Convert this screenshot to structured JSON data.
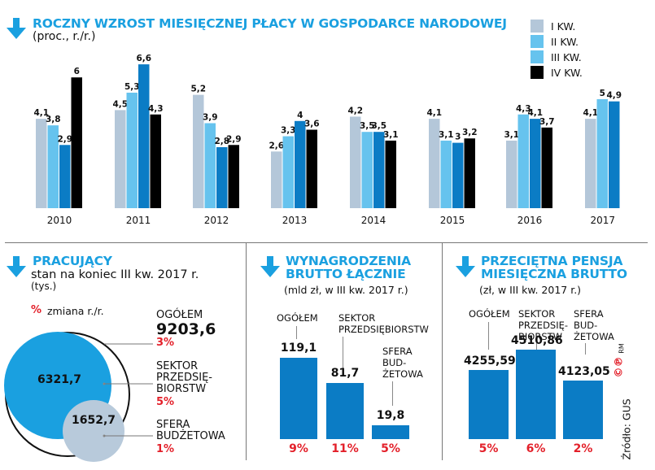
{
  "colors": {
    "accent": "#1aa0e0",
    "q1": "#b4c7d9",
    "q2": "#66c3ee",
    "q3": "#0b7cc5",
    "q4": "#000000",
    "red": "#e3202a",
    "bar_blue": "#0b7cc5",
    "circle_light": "#b8cadb"
  },
  "top": {
    "title": "ROCZNY WZROST MIESIĘCZNEJ PŁACY W GOSPODARCE NARODOWEJ",
    "subtitle": "(proc., r./r.)"
  },
  "legend": [
    {
      "label": "I KW.",
      "color": "#b4c7d9"
    },
    {
      "label": "II KW.",
      "color": "#66c3ee"
    },
    {
      "label": "III KW.",
      "color": "#66c3ee"
    },
    {
      "label": "IV KW.",
      "color": "#000000"
    }
  ],
  "chart_data": [
    {
      "type": "bar",
      "title": "ROCZNY WZROST MIESIĘCZNEJ PŁACY W GOSPODARCE NARODOWEJ",
      "subtitle": "(proc., r./r.)",
      "xlabel": "",
      "ylabel": "",
      "ylim": [
        0,
        7
      ],
      "grid": false,
      "legend_position": "top-right",
      "categories": [
        "2010",
        "2011",
        "2012",
        "2013",
        "2014",
        "2015",
        "2016",
        "2017"
      ],
      "series": [
        {
          "name": "I KW.",
          "values": [
            4.1,
            4.5,
            5.2,
            2.6,
            4.2,
            4.1,
            3.1,
            4.1
          ],
          "labels": [
            "4,1",
            "4,5",
            "5,2",
            "2,6",
            "4,2",
            "4,1",
            "3,1",
            "4,1"
          ]
        },
        {
          "name": "II KW.",
          "values": [
            3.8,
            5.3,
            3.9,
            3.3,
            3.5,
            3.1,
            4.3,
            5.0
          ],
          "labels": [
            "3,8",
            "5,3",
            "3,9",
            "3,3",
            "3,5",
            "3,1",
            "4,3",
            "5"
          ]
        },
        {
          "name": "III KW.",
          "values": [
            2.9,
            6.6,
            2.8,
            4.0,
            3.5,
            3.0,
            4.1,
            4.9
          ],
          "labels": [
            "2,9",
            "6,6",
            "2,8",
            "4",
            "3,5",
            "3",
            "4,1",
            "4,9"
          ]
        },
        {
          "name": "IV KW.",
          "values": [
            6.0,
            4.3,
            2.9,
            3.6,
            3.1,
            3.2,
            3.7,
            null
          ],
          "labels": [
            "6",
            "4,3",
            "2,9",
            "3,6",
            "3,1",
            "3,2",
            "3,7",
            ""
          ]
        }
      ]
    },
    {
      "type": "bar",
      "title": "WYNAGRODZENIA BRUTTO ŁĄCZNIE",
      "subtitle": "(mld zł, w III kw. 2017 r.)",
      "categories": [
        "OGÓŁEM",
        "SEKTOR PRZEDSIĘBIORSTW",
        "SFERA BUDŻETOWA"
      ],
      "values": [
        119.1,
        81.7,
        19.8
      ],
      "value_labels": [
        "119,1",
        "81,7",
        "19,8"
      ],
      "change_yoy": [
        "9%",
        "11%",
        "5%"
      ],
      "ylim": [
        0,
        130
      ]
    },
    {
      "type": "bar",
      "title": "PRZECIĘTNA PENSJA MIESIĘCZNA BRUTTO",
      "subtitle": "(zł, w III kw. 2017 r.)",
      "categories": [
        "OGÓŁEM",
        "SEKTOR PRZEDSIĘBIORSTW",
        "SFERA BUDŻETOWA"
      ],
      "values": [
        4255.59,
        4510.86,
        4123.05
      ],
      "value_labels": [
        "4255,59",
        "4510,86",
        "4123,05"
      ],
      "change_yoy": [
        "5%",
        "6%",
        "2%"
      ]
    }
  ],
  "employed": {
    "title": "PRACUJĄCY",
    "subtitle": "stan na koniec III kw. 2017 r.",
    "unit": "(tys.)",
    "legend_pct": "%",
    "legend_text": "zmiana r./r.",
    "total": {
      "label": "OGÓŁEM",
      "value": "9203,6",
      "change": "3%"
    },
    "enterprise": {
      "label_lines": [
        "SEKTOR",
        "PRZEDSIĘ-",
        "BIORSTW"
      ],
      "value": "6321,7",
      "change": "5%"
    },
    "budget": {
      "label_lines": [
        "SFERA",
        "BUDŻETOWA"
      ],
      "value": "1652,7",
      "change": "1%"
    }
  },
  "wages_total": {
    "title_lines": [
      "WYNAGRODZENIA",
      "BRUTTO ŁĄCZNIE"
    ],
    "subtitle": "(mld zł, w III kw. 2017 r.)",
    "labels": {
      "total": [
        "OGÓŁEM"
      ],
      "enterprise": [
        "SEKTOR",
        "PRZEDSIĘBIORSTW"
      ],
      "budget": [
        "SFERA",
        "BUD-",
        "ŻETOWA"
      ]
    },
    "values": [
      "119,1",
      "81,7",
      "19,8"
    ],
    "changes": [
      "9%",
      "11%",
      "5%"
    ]
  },
  "avg_pay": {
    "title_lines": [
      "PRZECIĘTNA PENSJA",
      "MIESIĘCZNA BRUTTO"
    ],
    "subtitle": "(zł, w III kw. 2017 r.)",
    "labels": {
      "total": [
        "OGÓŁEM"
      ],
      "enterprise": [
        "SEKTOR",
        "PRZEDSIĘ-",
        "BIORSTW"
      ],
      "budget": [
        "SFERA",
        "BUD-",
        "ŻETOWA"
      ]
    },
    "values": [
      "4255,59",
      "4510,86",
      "4123,05"
    ],
    "changes": [
      "5%",
      "6%",
      "2%"
    ]
  },
  "footer": {
    "source": "Źródło: GUS",
    "copyright": "©℗",
    "author": "RM"
  }
}
